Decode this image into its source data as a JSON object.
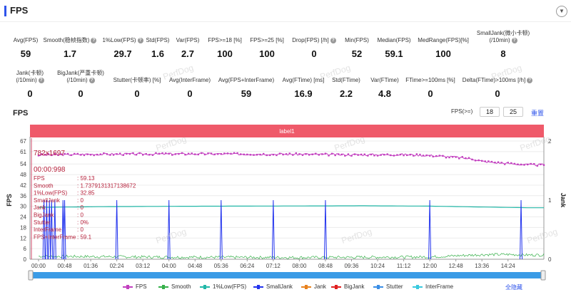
{
  "header": {
    "title": "FPS"
  },
  "stats_row1": [
    {
      "label": "Avg(FPS)",
      "value": "59",
      "help": false
    },
    {
      "label": "Smooth(稳帧指数)",
      "value": "1.7",
      "help": true
    },
    {
      "label": "1%Low(FPS)",
      "value": "29.7",
      "help": true
    },
    {
      "label": "Std(FPS)",
      "value": "1.6",
      "help": false
    },
    {
      "label": "Var(FPS)",
      "value": "2.7",
      "help": false
    },
    {
      "label": "FPS>=18 [%]",
      "value": "100",
      "help": false
    },
    {
      "label": "FPS>=25 [%]",
      "value": "100",
      "help": false
    },
    {
      "label": "Drop(FPS) [/h]",
      "value": "0",
      "help": true
    },
    {
      "label": "Min(FPS)",
      "value": "52",
      "help": false
    },
    {
      "label": "Median(FPS)",
      "value": "59.1",
      "help": false
    },
    {
      "label": "MedRange(FPS)[%]",
      "value": "100",
      "help": false
    },
    {
      "label": "SmallJank(微小卡顿)",
      "label2": "(/10min)",
      "value": "8",
      "help": true
    }
  ],
  "stats_row2": [
    {
      "label": "Jank(卡顿)",
      "label2": "(/10min)",
      "value": "0",
      "help": true
    },
    {
      "label": "BigJank(严重卡顿)",
      "label2": "(/10min)",
      "value": "0",
      "help": true
    },
    {
      "label": "Stutter(卡顿率) [%]",
      "value": "0",
      "help": false
    },
    {
      "label": "Avg(InterFrame)",
      "value": "0",
      "help": false
    },
    {
      "label": "Avg(FPS+InterFrame)",
      "value": "59",
      "help": false
    },
    {
      "label": "Avg(FTime) [ms]",
      "value": "16.9",
      "help": false
    },
    {
      "label": "Std(FTime)",
      "value": "2.2",
      "help": false
    },
    {
      "label": "Var(FTime)",
      "value": "4.8",
      "help": false
    },
    {
      "label": "FTime>=100ms [%]",
      "value": "0",
      "help": false
    },
    {
      "label": "Delta(FTime)>100ms [/h]",
      "value": "0",
      "help": true
    }
  ],
  "chart_header": {
    "title": "FPS",
    "threshold_label": "FPS(>=)",
    "threshold_1": "18",
    "threshold_2": "25",
    "reset": "重置"
  },
  "colors": {
    "fps": "#c23fbf",
    "smooth": "#36b04a",
    "low": "#22b8a8",
    "smalljank": "#2233ee",
    "jank": "#e8821e",
    "bigjank": "#e02020",
    "stutter": "#3a8ee6",
    "interframe": "#39c9de",
    "band": "#ef5a6a"
  },
  "watermark": "PerfDog",
  "tooltip": {
    "header": "782x1697",
    "time": "00:00:998",
    "rows": [
      {
        "k": "FPS",
        "v": "59.13"
      },
      {
        "k": "Smooth",
        "v": "1.7379131317138672"
      },
      {
        "k": "1%Low(FPS)",
        "v": "32.85"
      },
      {
        "k": "SmallJank",
        "v": "0"
      },
      {
        "k": "Jank",
        "v": "0"
      },
      {
        "k": "BigJank",
        "v": "0"
      },
      {
        "k": "Stutter",
        "v": "0%"
      },
      {
        "k": "InterFrame",
        "v": "0"
      },
      {
        "k": "FPS+InterFrame",
        "v": "59.1"
      }
    ]
  },
  "expand_all": "全隐藏",
  "chart_data": {
    "type": "line",
    "band_label": "label1",
    "xlabel": "",
    "ylabel": "FPS",
    "y2label": "Jank",
    "ylim": [
      0,
      67
    ],
    "yticks": [
      0,
      6,
      12,
      18,
      24,
      30,
      36,
      42,
      48,
      54,
      61,
      67
    ],
    "y2lim": [
      0,
      2
    ],
    "y2ticks": [
      0,
      1,
      2
    ],
    "xlim_seconds": [
      0,
      930
    ],
    "xticks": [
      "00:00",
      "00:48",
      "01:36",
      "02:24",
      "03:12",
      "04:00",
      "04:48",
      "05:36",
      "06:24",
      "07:12",
      "08:00",
      "08:48",
      "09:36",
      "10:24",
      "11:12",
      "12:00",
      "12:48",
      "13:36",
      "14:24"
    ],
    "legend": [
      "FPS",
      "Smooth",
      "1%Low(FPS)",
      "SmallJank",
      "Jank",
      "BigJank",
      "Stutter",
      "InterFrame"
    ],
    "series": [
      {
        "name": "FPS",
        "points": [
          [
            "00:00",
            59
          ],
          [
            "01:36",
            59.5
          ],
          [
            "03:12",
            59.6
          ],
          [
            "04:48",
            59.7
          ],
          [
            "06:24",
            59.6
          ],
          [
            "08:00",
            59.5
          ],
          [
            "09:36",
            59.2
          ],
          [
            "11:12",
            59.3
          ],
          [
            "12:00",
            58.8
          ],
          [
            "12:48",
            57.8
          ],
          [
            "13:20",
            56.8
          ],
          [
            "13:36",
            55.5
          ],
          [
            "14:00",
            54.8
          ],
          [
            "14:24",
            54.3
          ],
          [
            "15:00",
            53.5
          ]
        ]
      },
      {
        "name": "Smooth",
        "points": [
          [
            "00:00",
            1.7
          ],
          [
            "04:00",
            1.2
          ],
          [
            "08:00",
            1.0
          ],
          [
            "12:00",
            1.3
          ],
          [
            "13:36",
            2.6
          ],
          [
            "14:24",
            2.7
          ],
          [
            "15:00",
            2.4
          ]
        ]
      },
      {
        "name": "1%Low(FPS)",
        "points": [
          [
            "00:00",
            29.4
          ],
          [
            "02:00",
            29.8
          ],
          [
            "04:00",
            30.0
          ],
          [
            "06:00",
            30.1
          ],
          [
            "08:00",
            30.2
          ],
          [
            "10:00",
            30.3
          ],
          [
            "12:00",
            30.1
          ],
          [
            "13:36",
            29.6
          ],
          [
            "15:00",
            29.2
          ]
        ]
      },
      {
        "name": "SmallJank",
        "times": [
          "00:10",
          "00:15",
          "00:20",
          "00:24",
          "00:30",
          "00:45",
          "00:48",
          "02:24",
          "04:00",
          "05:36",
          "07:12",
          "08:48",
          "12:00",
          "14:48"
        ],
        "value": 1
      }
    ]
  }
}
